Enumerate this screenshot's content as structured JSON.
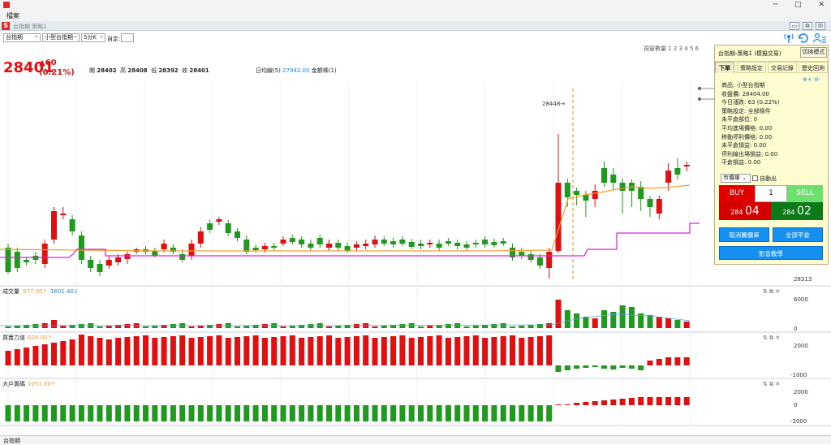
{
  "app": {
    "menu_item": "檔案",
    "window_title": "台指期 策略1",
    "bottom_tab": "台指期"
  },
  "window_controls": [
    "─",
    "□",
    "✕"
  ],
  "subwindow_buttons": [
    "▭",
    "⧉",
    "☒"
  ],
  "toolbar": {
    "symbol_select": "台指期",
    "contract_select": "小型台指期",
    "period_select": "5分K",
    "custom_label": "自定:",
    "custom_value": "",
    "window_count_label": "視窗數量 1 2 3 4 5 6"
  },
  "quote": {
    "price": "28401",
    "change": "▲60",
    "change_pct": "(0.21%)",
    "open_label": "開",
    "open": "28402",
    "high_label": "高",
    "high": "28408",
    "low_label": "低",
    "low": "28392",
    "close_label": "收",
    "close": "28401",
    "ma_label": "日均線(5)",
    "ma_value": "27942.00",
    "ma_suffix": "金額棒(1)"
  },
  "main_chart": {
    "high_annotation": "28448→",
    "low_axis_label": "28313"
  },
  "panes": {
    "volume": {
      "name": "成交量",
      "v1": "977.00↑",
      "v2": "1601.40↓",
      "axis": [
        "6000",
        "0"
      ]
    },
    "power": {
      "name": "買賣力道",
      "v1": "626.00↑",
      "axis": [
        "2000",
        "-1000"
      ]
    },
    "bigplayer": {
      "name": "大戶籌碼",
      "v1": "1051.00↑",
      "axis": [
        "2000",
        "0",
        "-2000"
      ]
    },
    "pane_tools": "⇅ ⧉ ✕"
  },
  "panel": {
    "title": "台指期-策略1 (模擬交易)",
    "switch_mode": "切換模式",
    "tabs": [
      "下單",
      "策略設定",
      "交易記錄",
      "歷史回測"
    ],
    "zoom": "🔍+ 🔍-",
    "lines": [
      "商品: 小型台指期",
      "收盤價: 28404.00",
      "今日漲跌: 63 (0.22%)",
      "策略設定: 全部條件",
      "未平倉部位: 0",
      "平均進場價格: 0.00",
      "移動停利價格: 0.00",
      "未平倉損益: 0.00",
      "停利線出場損益: 0.00",
      "平倉損益: 0.00"
    ],
    "order_type": "市價單",
    "auto_exit_label": "自動出",
    "buy_label": "BUY",
    "sell_label": "SELL",
    "quantity": "1",
    "buy_price_small": "284",
    "buy_price_big": "04",
    "sell_price_small": "284",
    "sell_price_big": "02",
    "cancel_button": "取消觸價單",
    "close_all_button": "全部平倉",
    "video_button": "影音教學"
  },
  "colors": {
    "up": "#e01010",
    "down": "#1f9a1f",
    "ma": "#f0a030",
    "stop_line": "#e020e0",
    "accent_blue": "#1690f0"
  }
}
